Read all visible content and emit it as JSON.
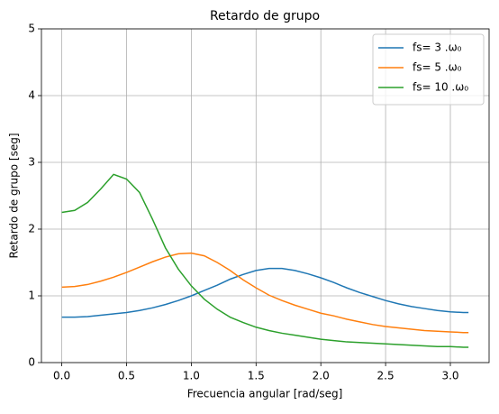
{
  "chart_data": {
    "type": "line",
    "title": "Retardo de grupo",
    "xlabel": "Frecuencia angular [rad/seg]",
    "ylabel": "Retardo de grupo [seg]",
    "x": [
      0,
      0.1,
      0.2,
      0.3,
      0.4,
      0.5,
      0.6,
      0.7,
      0.8,
      0.9,
      1.0,
      1.1,
      1.2,
      1.3,
      1.4,
      1.5,
      1.6,
      1.7,
      1.8,
      1.9,
      2.0,
      2.1,
      2.2,
      2.3,
      2.4,
      2.5,
      2.6,
      2.7,
      2.8,
      2.9,
      3.0,
      3.1,
      3.14
    ],
    "series": [
      {
        "name": "fs=  3 .ω₀",
        "color": "#1f77b4",
        "values": [
          0.68,
          0.68,
          0.69,
          0.71,
          0.73,
          0.75,
          0.78,
          0.82,
          0.87,
          0.93,
          1.0,
          1.08,
          1.16,
          1.25,
          1.32,
          1.38,
          1.41,
          1.41,
          1.38,
          1.33,
          1.27,
          1.2,
          1.12,
          1.05,
          0.99,
          0.93,
          0.88,
          0.84,
          0.81,
          0.78,
          0.76,
          0.75,
          0.75
        ]
      },
      {
        "name": "fs=  5 .ω₀",
        "color": "#ff7f0e",
        "values": [
          1.13,
          1.14,
          1.17,
          1.22,
          1.28,
          1.35,
          1.43,
          1.51,
          1.58,
          1.63,
          1.64,
          1.6,
          1.5,
          1.38,
          1.24,
          1.12,
          1.01,
          0.93,
          0.86,
          0.8,
          0.74,
          0.7,
          0.65,
          0.61,
          0.57,
          0.54,
          0.52,
          0.5,
          0.48,
          0.47,
          0.46,
          0.45,
          0.45
        ]
      },
      {
        "name": "fs= 10 .ω₀",
        "color": "#2ca02c",
        "values": [
          2.25,
          2.28,
          2.4,
          2.6,
          2.82,
          2.75,
          2.55,
          2.15,
          1.72,
          1.4,
          1.15,
          0.95,
          0.8,
          0.68,
          0.6,
          0.53,
          0.48,
          0.44,
          0.41,
          0.38,
          0.35,
          0.33,
          0.31,
          0.3,
          0.29,
          0.28,
          0.27,
          0.26,
          0.25,
          0.24,
          0.24,
          0.23,
          0.23
        ]
      }
    ],
    "xlim": [
      -0.157,
      3.299
    ],
    "ylim": [
      0,
      5
    ],
    "xticks": [
      {
        "value": 0,
        "label": "0.0"
      },
      {
        "value": 0.5,
        "label": "0.5"
      },
      {
        "value": 1,
        "label": "1.0"
      },
      {
        "value": 1.5,
        "label": "1.5"
      },
      {
        "value": 2,
        "label": "2.0"
      },
      {
        "value": 2.5,
        "label": "2.5"
      },
      {
        "value": 3,
        "label": "3.0"
      }
    ],
    "yticks": [
      0,
      1,
      2,
      3,
      4,
      5
    ],
    "grid": true,
    "legend": "upper right"
  }
}
